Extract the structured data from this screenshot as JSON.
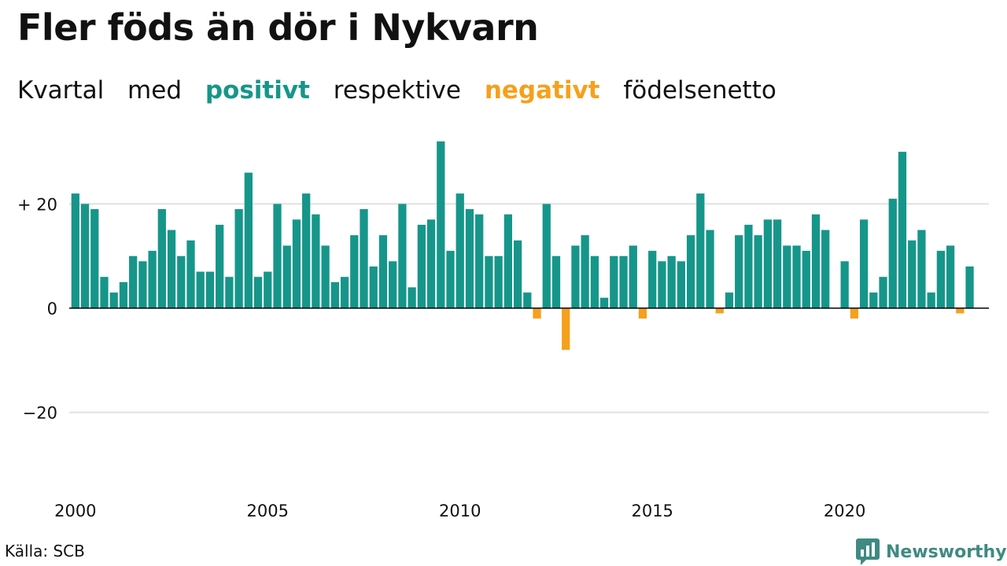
{
  "header": {
    "title": "Fler föds än dör i Nykvarn",
    "subtitle_parts": [
      "Kvartal",
      "med",
      "positivt",
      "respektive",
      "negativt",
      "födelsenetto"
    ]
  },
  "colors": {
    "positive": "#16968a",
    "negative": "#f6a01c",
    "grid": "#e0e0e0",
    "text": "#111111",
    "brand": "#3f8a83"
  },
  "footer": {
    "source": "Källa: SCB",
    "brand_name": "Newsworthy",
    "brand_icon": "bar-chart-speech-bubble-icon"
  },
  "chart_data": {
    "type": "bar",
    "x_start": 2000.0,
    "x_step": 0.25,
    "x_ticks": [
      2000,
      2005,
      2010,
      2015,
      2020
    ],
    "x_tick_labels": [
      "2000",
      "2005",
      "2010",
      "2015",
      "2020"
    ],
    "y_ticks": [
      20,
      0,
      -20
    ],
    "y_tick_labels": [
      "+ 20",
      "0",
      "−20"
    ],
    "ylim": [
      -33,
      33
    ],
    "xlabel": "",
    "ylabel": "",
    "grid": true,
    "values": [
      22,
      20,
      19,
      6,
      3,
      5,
      10,
      9,
      11,
      19,
      15,
      10,
      13,
      7,
      7,
      16,
      6,
      19,
      26,
      6,
      7,
      20,
      12,
      17,
      22,
      18,
      12,
      5,
      6,
      14,
      19,
      8,
      14,
      9,
      20,
      4,
      16,
      17,
      32,
      11,
      22,
      19,
      18,
      10,
      10,
      18,
      13,
      3,
      -2,
      20,
      10,
      -8,
      12,
      14,
      10,
      2,
      10,
      10,
      12,
      -2,
      11,
      9,
      10,
      9,
      14,
      22,
      15,
      -1,
      3,
      14,
      16,
      14,
      17,
      17,
      12,
      12,
      11,
      18,
      15,
      0,
      9,
      -2,
      17,
      3,
      6,
      21,
      30,
      13,
      15,
      3,
      11,
      12,
      -1,
      8
    ]
  }
}
